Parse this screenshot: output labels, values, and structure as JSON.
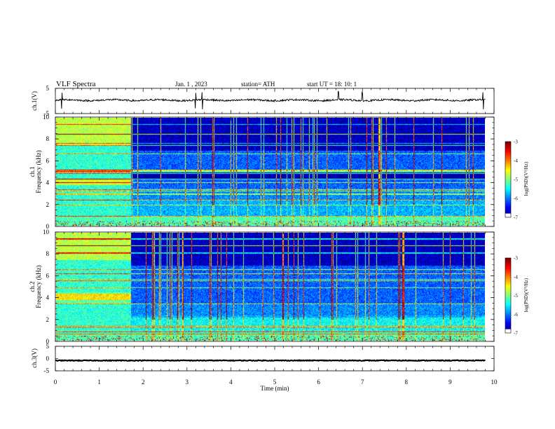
{
  "header": {
    "title": "VLF  Spectra",
    "date": "Jan.  1  , 2023",
    "station": "station= ATH",
    "start_ut": "start  UT  =    18: 10: 1"
  },
  "chart_data": [
    {
      "type": "line",
      "panel": "ch1-waveform",
      "ylabel": "ch.1(V)",
      "ylim": [
        -5,
        5
      ],
      "yticks": [
        "5",
        "-5"
      ],
      "xlim": [
        0,
        10
      ],
      "mean_level": 0.3,
      "noise_amplitude": 0.35,
      "series": [
        {
          "values_description_only": false,
          "spikes_at_min": [
            0.15,
            3.2,
            3.35,
            6.45,
            7.0,
            9.75
          ]
        }
      ]
    },
    {
      "type": "heatmap",
      "panel": "ch1-spectrogram",
      "ylabel_prefix": "ch.1",
      "ylabel": "Frequency  (kHz)",
      "ylim": [
        0,
        10
      ],
      "yticks": [
        "0",
        "2",
        "4",
        "6",
        "8",
        "10"
      ],
      "xlim": [
        0,
        9.8
      ],
      "transition_min": 1.72,
      "colorbar": {
        "label": "log(PSD)(V²/Hz)",
        "range": [
          -7,
          -3
        ],
        "ticks": [
          "-3",
          "-4",
          "-5",
          "-6",
          "-7"
        ]
      }
    },
    {
      "type": "heatmap",
      "panel": "ch2-spectrogram",
      "ylabel_prefix": "ch.2",
      "ylabel": "Frequency  (kHz)",
      "ylim": [
        0,
        10
      ],
      "yticks": [
        "0",
        "2",
        "4",
        "6",
        "8",
        "10"
      ],
      "xlim": [
        0,
        9.8
      ],
      "transition_min": 1.72,
      "colorbar": {
        "label": "log(PSD)(V²/Hz)",
        "range": [
          -7,
          -3
        ],
        "ticks": [
          "-3",
          "-4",
          "-5",
          "-6",
          "-7"
        ]
      }
    },
    {
      "type": "line",
      "panel": "ch3-waveform",
      "ylabel": "ch.3(V)",
      "ylim": [
        -5,
        5
      ],
      "yticks": [
        "5",
        "0",
        "-5"
      ],
      "xlim": [
        0,
        10
      ],
      "mean_level": -0.8,
      "noise_amplitude": 0.15
    }
  ],
  "xaxis": {
    "label": "Time  (min)",
    "range": [
      0,
      10
    ],
    "ticks": [
      "0",
      "1",
      "2",
      "3",
      "4",
      "5",
      "6",
      "7",
      "8",
      "9",
      "10"
    ]
  }
}
